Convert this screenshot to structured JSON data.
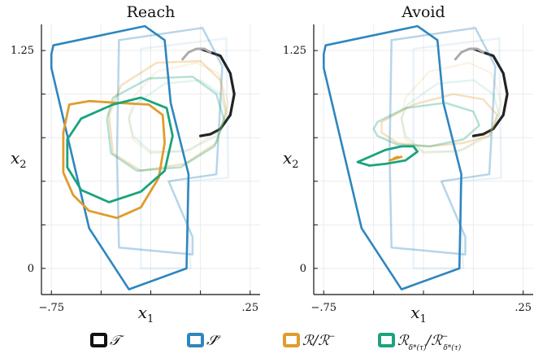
{
  "chart_data": [
    {
      "type": "line",
      "title": "Reach",
      "xlabel": "x",
      "xlabel_sub": "1",
      "ylabel": "x",
      "ylabel_sub": "2",
      "xlim": [
        -0.8,
        0.3
      ],
      "ylim": [
        -0.15,
        1.4
      ],
      "x_ticks": [
        -0.75,
        0.25
      ],
      "x_tick_labels": [
        "−.75",
        ".25"
      ],
      "y_ticks": [
        0,
        1.25
      ],
      "y_tick_labels": [
        "0",
        "1.25"
      ],
      "grid": true,
      "series": [
        {
          "key": "target",
          "color": "#222222",
          "width": 3.2,
          "opacity": 1,
          "x": [
            0.0,
            0.1,
            0.15,
            0.17,
            0.15,
            0.1,
            0.05,
            0.0
          ],
          "y": [
            1.26,
            1.22,
            1.12,
            1.0,
            0.88,
            0.8,
            0.77,
            0.76
          ]
        },
        {
          "key": "target-gray",
          "color": "#aaaaaa",
          "width": 3,
          "opacity": 1,
          "x": [
            -0.09,
            -0.06,
            -0.02,
            0.02,
            0.05
          ],
          "y": [
            1.2,
            1.24,
            1.26,
            1.26,
            1.24
          ]
        },
        {
          "key": "S-faint-2",
          "color": "#2e86bf",
          "width": 2.5,
          "opacity": 0.1,
          "x": [
            -0.3,
            0.13,
            0.14,
            -0.07,
            -0.05,
            -0.3,
            -0.3
          ],
          "y": [
            1.26,
            1.32,
            0.52,
            0.5,
            0.0,
            0.0,
            1.26
          ]
        },
        {
          "key": "R-faint-2",
          "color": "#e09c2d",
          "width": 2.5,
          "opacity": 0.12,
          "x": [
            -0.34,
            -0.22,
            -0.02,
            0.09,
            0.14,
            0.1,
            -0.05,
            -0.25,
            -0.34,
            -0.36,
            -0.34
          ],
          "y": [
            0.98,
            1.13,
            1.18,
            1.12,
            0.95,
            0.8,
            0.68,
            0.66,
            0.74,
            0.86,
            0.98
          ]
        },
        {
          "key": "G-faint-2",
          "color": "#1aa37e",
          "width": 2.5,
          "opacity": 0.12,
          "x": [
            -0.33,
            -0.18,
            0.0,
            0.1,
            0.13,
            0.08,
            -0.08,
            -0.25,
            -0.34,
            -0.36,
            -0.33
          ],
          "y": [
            0.94,
            1.06,
            1.08,
            1.0,
            0.88,
            0.76,
            0.67,
            0.67,
            0.76,
            0.86,
            0.94
          ]
        },
        {
          "key": "S-faint-1",
          "color": "#2e86bf",
          "width": 2.5,
          "opacity": 0.35,
          "x": [
            -0.41,
            0.01,
            0.11,
            0.08,
            -0.16,
            -0.04,
            -0.04,
            -0.41,
            -0.42,
            -0.41
          ],
          "y": [
            1.31,
            1.38,
            1.16,
            0.54,
            0.5,
            0.18,
            0.08,
            0.12,
            0.65,
            1.31
          ]
        },
        {
          "key": "R-faint-1",
          "color": "#e09c2d",
          "width": 2.5,
          "opacity": 0.3,
          "x": [
            -0.4,
            -0.22,
            0.0,
            0.1,
            0.13,
            0.08,
            -0.08,
            -0.3,
            -0.44,
            -0.46,
            -0.4
          ],
          "y": [
            1.05,
            1.18,
            1.19,
            1.08,
            0.9,
            0.72,
            0.6,
            0.56,
            0.66,
            0.88,
            1.05
          ]
        },
        {
          "key": "G-faint-1",
          "color": "#1aa37e",
          "width": 2.5,
          "opacity": 0.32,
          "x": [
            -0.44,
            -0.26,
            -0.04,
            0.08,
            0.12,
            0.07,
            -0.1,
            -0.32,
            -0.45,
            -0.47,
            -0.44
          ],
          "y": [
            0.98,
            1.09,
            1.1,
            1.0,
            0.85,
            0.7,
            0.58,
            0.56,
            0.66,
            0.86,
            0.98
          ]
        },
        {
          "key": "S",
          "color": "#2e86bf",
          "width": 2.6,
          "opacity": 1,
          "x": [
            -0.74,
            -0.28,
            -0.18,
            -0.15,
            -0.06,
            -0.07,
            -0.36,
            -0.56,
            -0.75,
            -0.75,
            -0.74
          ],
          "y": [
            1.28,
            1.39,
            1.31,
            0.95,
            0.54,
            0.0,
            -0.12,
            0.23,
            1.15,
            1.23,
            1.28
          ]
        },
        {
          "key": "R",
          "color": "#e09c2d",
          "width": 2.8,
          "opacity": 1,
          "x": [
            -0.66,
            -0.56,
            -0.42,
            -0.26,
            -0.19,
            -0.18,
            -0.21,
            -0.3,
            -0.42,
            -0.56,
            -0.64,
            -0.69,
            -0.69,
            -0.66
          ],
          "y": [
            0.94,
            0.96,
            0.95,
            0.94,
            0.88,
            0.72,
            0.52,
            0.35,
            0.29,
            0.33,
            0.42,
            0.55,
            0.78,
            0.94
          ]
        },
        {
          "key": "G",
          "color": "#1aa37e",
          "width": 2.8,
          "opacity": 1,
          "x": [
            -0.6,
            -0.44,
            -0.3,
            -0.17,
            -0.14,
            -0.18,
            -0.3,
            -0.46,
            -0.6,
            -0.67,
            -0.67,
            -0.6
          ],
          "y": [
            0.86,
            0.94,
            0.98,
            0.92,
            0.76,
            0.56,
            0.44,
            0.38,
            0.45,
            0.58,
            0.74,
            0.86
          ]
        }
      ]
    },
    {
      "type": "line",
      "title": "Avoid",
      "xlabel": "x",
      "xlabel_sub": "1",
      "ylabel": "x",
      "ylabel_sub": "2",
      "xlim": [
        -0.8,
        0.3
      ],
      "ylim": [
        -0.15,
        1.4
      ],
      "x_ticks": [
        -0.75,
        0.25
      ],
      "x_tick_labels": [
        "−.75",
        ".25"
      ],
      "y_ticks": [
        0,
        1.25
      ],
      "y_tick_labels": [
        "0",
        "1.25"
      ],
      "grid": true,
      "series": [
        {
          "key": "target",
          "color": "#222222",
          "width": 3.2,
          "opacity": 1,
          "x": [
            0.0,
            0.1,
            0.15,
            0.17,
            0.15,
            0.1,
            0.05,
            0.0
          ],
          "y": [
            1.26,
            1.22,
            1.12,
            1.0,
            0.88,
            0.8,
            0.77,
            0.76
          ]
        },
        {
          "key": "target-gray",
          "color": "#aaaaaa",
          "width": 3,
          "opacity": 1,
          "x": [
            -0.09,
            -0.06,
            -0.02,
            0.02,
            0.05
          ],
          "y": [
            1.2,
            1.24,
            1.26,
            1.26,
            1.24
          ]
        },
        {
          "key": "S-faint-2",
          "color": "#2e86bf",
          "width": 2.5,
          "opacity": 0.1,
          "x": [
            -0.3,
            0.13,
            0.14,
            -0.07,
            -0.05,
            -0.3,
            -0.3
          ],
          "y": [
            1.26,
            1.32,
            0.52,
            0.5,
            0.0,
            0.0,
            1.26
          ]
        },
        {
          "key": "R-faint-2",
          "color": "#e09c2d",
          "width": 2.5,
          "opacity": 0.12,
          "x": [
            -0.34,
            -0.22,
            -0.02,
            0.09,
            0.14,
            0.1,
            -0.05,
            -0.25,
            -0.34,
            -0.36,
            -0.34
          ],
          "y": [
            0.98,
            1.13,
            1.18,
            1.12,
            0.95,
            0.8,
            0.68,
            0.66,
            0.74,
            0.86,
            0.98
          ]
        },
        {
          "key": "G-faint-2",
          "color": "#1aa37e",
          "width": 2.5,
          "opacity": 0.12,
          "x": [
            -0.33,
            -0.18,
            0.0,
            0.1,
            0.13,
            0.08,
            -0.08,
            -0.25,
            -0.34,
            -0.36,
            -0.33
          ],
          "y": [
            0.94,
            1.06,
            1.08,
            1.0,
            0.88,
            0.76,
            0.67,
            0.67,
            0.76,
            0.86,
            0.94
          ]
        },
        {
          "key": "S-faint-1",
          "color": "#2e86bf",
          "width": 2.5,
          "opacity": 0.35,
          "x": [
            -0.41,
            0.01,
            0.11,
            0.08,
            -0.16,
            -0.04,
            -0.04,
            -0.41,
            -0.42,
            -0.41
          ],
          "y": [
            1.31,
            1.38,
            1.16,
            0.54,
            0.5,
            0.18,
            0.08,
            0.12,
            0.65,
            1.31
          ]
        },
        {
          "key": "R-faint-1",
          "color": "#e09c2d",
          "width": 2.5,
          "opacity": 0.3,
          "x": [
            -0.46,
            -0.3,
            -0.1,
            0.05,
            0.12,
            0.08,
            -0.05,
            -0.22,
            -0.38,
            -0.46,
            -0.46
          ],
          "y": [
            0.84,
            0.94,
            1.0,
            0.97,
            0.88,
            0.76,
            0.72,
            0.7,
            0.72,
            0.78,
            0.84
          ]
        },
        {
          "key": "G-faint-1",
          "color": "#1aa37e",
          "width": 2.5,
          "opacity": 0.32,
          "x": [
            -0.48,
            -0.34,
            -0.14,
            0.0,
            0.03,
            -0.05,
            -0.22,
            -0.38,
            -0.48,
            -0.5,
            -0.48
          ],
          "y": [
            0.84,
            0.92,
            0.95,
            0.9,
            0.82,
            0.74,
            0.7,
            0.71,
            0.76,
            0.8,
            0.84
          ]
        },
        {
          "key": "S",
          "color": "#2e86bf",
          "width": 2.6,
          "opacity": 1,
          "x": [
            -0.74,
            -0.28,
            -0.18,
            -0.15,
            -0.06,
            -0.07,
            -0.36,
            -0.56,
            -0.75,
            -0.75,
            -0.74
          ],
          "y": [
            1.28,
            1.39,
            1.31,
            0.95,
            0.54,
            0.0,
            -0.12,
            0.23,
            1.15,
            1.23,
            1.28
          ]
        },
        {
          "key": "R",
          "color": "#e09c2d",
          "width": 2.8,
          "opacity": 1,
          "x": [
            -0.38,
            -0.4,
            -0.36,
            -0.42
          ],
          "y": [
            0.64,
            0.63,
            0.64,
            0.62
          ]
        },
        {
          "key": "G",
          "color": "#1aa37e",
          "width": 2.8,
          "opacity": 1,
          "x": [
            -0.5,
            -0.44,
            -0.36,
            -0.3,
            -0.28,
            -0.34,
            -0.44,
            -0.52,
            -0.58,
            -0.5
          ],
          "y": [
            0.65,
            0.68,
            0.7,
            0.7,
            0.67,
            0.62,
            0.6,
            0.59,
            0.61,
            0.65
          ]
        }
      ]
    }
  ],
  "legend": {
    "entries": [
      {
        "key": "target",
        "color": "#111111",
        "main": "𝒯",
        "parts": []
      },
      {
        "key": "S",
        "color": "#2e86bf",
        "main": "𝒮̂",
        "parts": []
      },
      {
        "key": "R",
        "color": "#e09c2d",
        "main": "ℛ/ℛ",
        "sup": "−",
        "parts": []
      },
      {
        "key": "G",
        "color": "#1aa37e",
        "main": "ℛ",
        "sub": "δ*(τ)",
        "slash": "/ℛ",
        "sup2": "−",
        "sub2": "δ*(τ)"
      }
    ]
  }
}
